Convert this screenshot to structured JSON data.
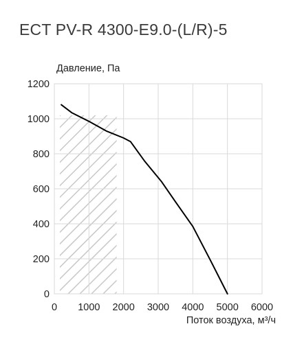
{
  "chart_data": {
    "type": "line",
    "title": "ECT PV-R 4300-E9.0-(L/R)-5",
    "ylabel": "Давление, Па",
    "xlabel": "Поток воздуха, м³/ч",
    "xlim": [
      0,
      6000
    ],
    "ylim": [
      0,
      1200
    ],
    "x_ticks": [
      0,
      1000,
      2000,
      3000,
      4000,
      5000,
      6000
    ],
    "y_ticks": [
      0,
      200,
      400,
      600,
      800,
      1000,
      1200
    ],
    "x_tick_labels": [
      "0",
      "1000",
      "2000",
      "3000",
      "4000",
      "5000",
      "6000"
    ],
    "y_tick_labels": [
      "0",
      "200",
      "400",
      "600",
      "800",
      "1000",
      "1200"
    ],
    "grid": true,
    "line_color": "#000000",
    "grid_color": "#d9d9d9",
    "hatch_color": "#c8c8c8",
    "series": [
      {
        "x": [
          200,
          500,
          1000,
          1500,
          2000,
          2200,
          2600,
          3100,
          3500,
          4000,
          4500,
          5000
        ],
        "y": [
          1080,
          1035,
          985,
          930,
          890,
          870,
          760,
          640,
          525,
          385,
          195,
          0
        ]
      }
    ],
    "hatched_region": {
      "x": [
        0,
        1800
      ],
      "y": [
        0,
        1020
      ]
    }
  }
}
